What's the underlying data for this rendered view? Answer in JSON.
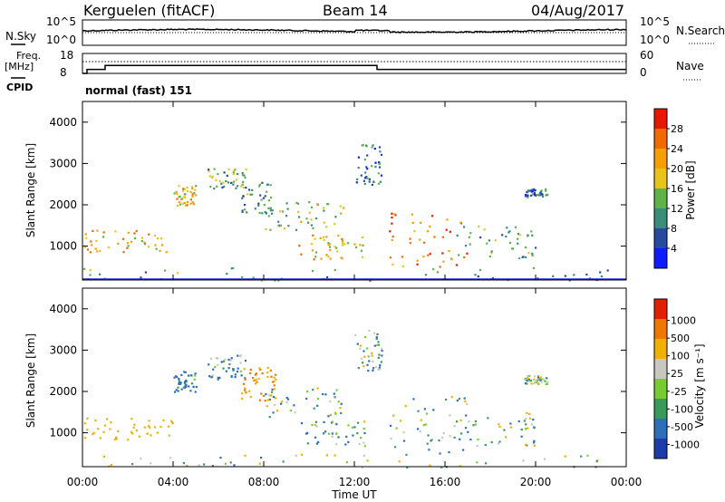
{
  "header": {
    "station": "Kerguelen (fitACF)",
    "beam": "Beam 14",
    "date": "04/Aug/2017"
  },
  "noise_panel": {
    "left_label": "N.Sky",
    "right_label": "N.Search",
    "ticks_left": [
      "10^5",
      "10^0"
    ],
    "ticks_right": [
      "10^5",
      "10^0"
    ]
  },
  "freq_panel": {
    "left_label_line1": "Freq.",
    "left_label_line2": "[MHz]",
    "cpid_label": "CPID",
    "ticks_left": [
      "18",
      "8"
    ],
    "right_label": "Nave",
    "ticks_right": [
      "60",
      "0"
    ],
    "cpid_text": "normal (fast) 151"
  },
  "power_panel": {
    "ylabel": "Slant Range [km]",
    "yticks": [
      "4000",
      "3000",
      "2000",
      "1000"
    ],
    "colorbar_label": "Power [dB]",
    "colorbar_ticks": [
      "28",
      "24",
      "20",
      "16",
      "12",
      "8",
      "4"
    ],
    "colors": [
      "#0c1eff",
      "#2a4a9e",
      "#3c8c7a",
      "#5db34a",
      "#e8c41a",
      "#f5a000",
      "#f06a00",
      "#e81800"
    ]
  },
  "velocity_panel": {
    "ylabel": "Slant Range [km]",
    "yticks": [
      "4000",
      "3000",
      "2000",
      "1000"
    ],
    "colorbar_label": "Velocity [m s⁻¹]",
    "colorbar_ticks": [
      "1000",
      "500",
      "100",
      "25",
      "-25",
      "-100",
      "-500",
      "-1000"
    ],
    "colors": [
      "#1e3ca8",
      "#2e6eb8",
      "#3a9a5a",
      "#77cc33",
      "#c8c8c0",
      "#f0b000",
      "#f07800",
      "#e02000"
    ]
  },
  "xaxis": {
    "ticks": [
      "00:00",
      "04:00",
      "08:00",
      "12:00",
      "16:00",
      "20:00",
      "00:00"
    ],
    "label": "Time UT"
  },
  "chart_data": {
    "type": "heatmap",
    "title": "Kerguelen (fitACF) Beam 14 04/Aug/2017",
    "xlabel": "Time UT",
    "ylabel": "Slant Range [km]",
    "xlim": [
      0,
      24
    ],
    "ylim": [
      180,
      4500
    ],
    "power_scale": [
      0,
      30
    ],
    "velocity_scale": [
      -1000,
      1000
    ],
    "frequency": {
      "times": [
        0,
        0.2,
        1.0,
        13.0,
        24
      ],
      "values_mhz": [
        8,
        10,
        12,
        10,
        10
      ]
    },
    "echo_regions": [
      {
        "t": [
          0.0,
          4.0
        ],
        "r": [
          850,
          1400
        ],
        "power": 20,
        "velocity": -300
      },
      {
        "t": [
          4.0,
          5.0
        ],
        "r": [
          2000,
          2500
        ],
        "power": 18,
        "velocity": 200
      },
      {
        "t": [
          5.5,
          7.2
        ],
        "r": [
          2300,
          2900
        ],
        "power": 12,
        "velocity": 100
      },
      {
        "t": [
          7.0,
          8.5
        ],
        "r": [
          1800,
          2600
        ],
        "power": 10,
        "velocity": -500
      },
      {
        "t": [
          8.0,
          11.5
        ],
        "r": [
          1400,
          2100
        ],
        "power": 14,
        "velocity": 0
      },
      {
        "t": [
          9.5,
          12.5
        ],
        "r": [
          700,
          1300
        ],
        "power": 18,
        "velocity": 80
      },
      {
        "t": [
          12.0,
          13.2
        ],
        "r": [
          2500,
          3500
        ],
        "power": 8,
        "velocity": 0
      },
      {
        "t": [
          13.5,
          17.0
        ],
        "r": [
          500,
          1900
        ],
        "power": 24,
        "velocity": 20
      },
      {
        "t": [
          16.5,
          20.0
        ],
        "r": [
          700,
          1500
        ],
        "power": 12,
        "velocity": -20
      },
      {
        "t": [
          19.5,
          20.5
        ],
        "r": [
          2200,
          2400
        ],
        "power": 8,
        "velocity": 0
      },
      {
        "t": [
          0.0,
          24.0
        ],
        "r": [
          180,
          500
        ],
        "power": 10,
        "velocity": -50
      }
    ]
  }
}
